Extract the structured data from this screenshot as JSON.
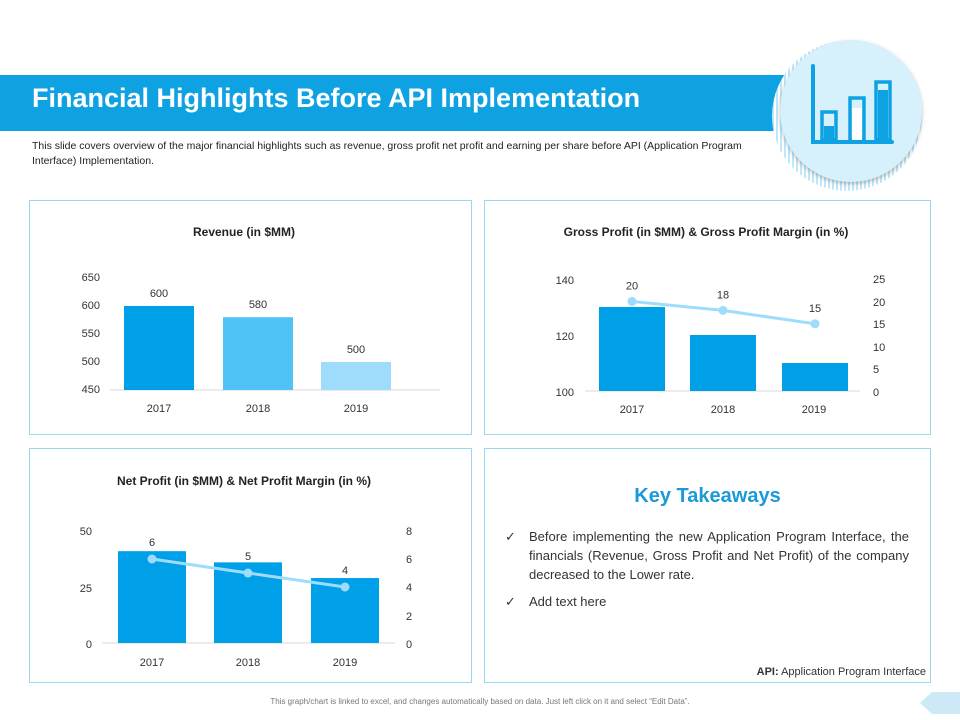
{
  "header": {
    "title": "Financial Highlights Before API Implementation",
    "subtitle": "This slide covers overview of the major financial highlights such as revenue, gross profit net profit and earning per share before API (Application Program Interface) Implementation."
  },
  "hero": {
    "icon": "bar-chart-icon"
  },
  "colors": {
    "accent": "#0ea2e3",
    "bar_dark": "#00a0e9",
    "bar_mid": "#4fc3f7",
    "bar_light": "#9fdcfb",
    "line": "#9fdcfb",
    "border": "#9ad7f3"
  },
  "chart_data": [
    {
      "id": "revenue",
      "type": "bar",
      "title": "Revenue (in $MM)",
      "categories": [
        "2017",
        "2018",
        "2019"
      ],
      "values": [
        600,
        580,
        500
      ],
      "value_labels": [
        "600",
        "580",
        "500"
      ],
      "ylim": [
        450,
        650
      ],
      "yticks": [
        "650",
        "600",
        "550",
        "500",
        "450"
      ],
      "xlabel": "",
      "ylabel": "",
      "grid": false
    },
    {
      "id": "gross",
      "type": "bar",
      "title": "Gross Profit (in $MM) & Gross Profit Margin (in %)",
      "categories": [
        "2017",
        "2018",
        "2019"
      ],
      "series": [
        {
          "name": "Gross Profit",
          "kind": "bar",
          "axis": "left",
          "values": [
            130,
            120,
            110
          ]
        },
        {
          "name": "Gross Profit Margin",
          "kind": "line",
          "axis": "right",
          "values": [
            20,
            18,
            15
          ],
          "value_labels": [
            "20",
            "18",
            "15"
          ]
        }
      ],
      "ylim": [
        100,
        140
      ],
      "yticks": [
        "140",
        "120",
        "100"
      ],
      "y2lim": [
        0,
        25
      ],
      "y2ticks": [
        "25",
        "20",
        "15",
        "10",
        "5",
        "0"
      ]
    },
    {
      "id": "net",
      "type": "bar",
      "title": "Net Profit (in $MM) & Net Profit Margin (in %)",
      "categories": [
        "2017",
        "2018",
        "2019"
      ],
      "series": [
        {
          "name": "Net Profit",
          "kind": "bar",
          "axis": "left",
          "values": [
            41,
            36,
            29
          ]
        },
        {
          "name": "Net Profit Margin",
          "kind": "line",
          "axis": "right",
          "values": [
            6,
            5,
            4
          ],
          "value_labels": [
            "6",
            "5",
            "4"
          ]
        }
      ],
      "ylim": [
        0,
        50
      ],
      "yticks": [
        "50",
        "25",
        "0"
      ],
      "y2lim": [
        0,
        8
      ],
      "y2ticks": [
        "8",
        "6",
        "4",
        "2",
        "0"
      ]
    }
  ],
  "takeaways": {
    "title": "Key Takeaways",
    "items": [
      "Before implementing the new Application Program Interface, the financials (Revenue, Gross Profit and Net Profit) of the company decreased to the Lower rate.",
      "Add text here"
    ],
    "check_glyph": "✓",
    "footnote_term": "API:",
    "footnote_text": "Application Program Interface"
  },
  "footer": {
    "note": "This graph/chart is linked to excel, and changes automatically based on data. Just left click on it and select “Edit Data”."
  }
}
